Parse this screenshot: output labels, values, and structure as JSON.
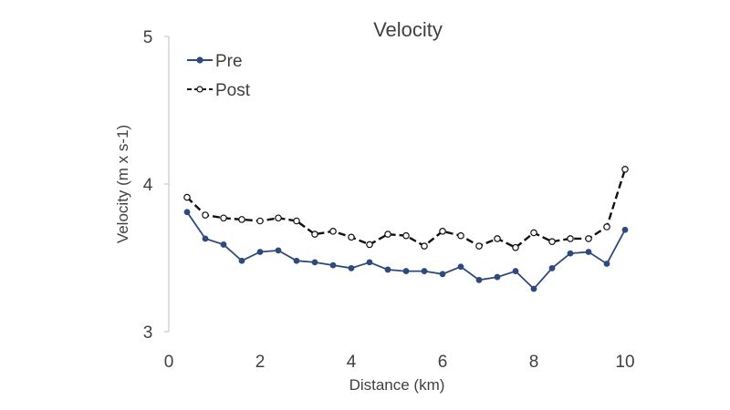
{
  "chart_data": {
    "type": "line",
    "title": "Velocity",
    "xlabel": "Distance (km)",
    "ylabel": "Velocity (m x s-1)",
    "xlim": [
      0,
      10
    ],
    "ylim": [
      3,
      5
    ],
    "x_ticks": [
      "0",
      "2",
      "4",
      "6",
      "8",
      "10"
    ],
    "y_ticks": [
      "3",
      "4",
      "5"
    ],
    "grid": false,
    "legend_position": "top-left",
    "series": [
      {
        "name": "Pre",
        "style": "solid",
        "marker": "filled-circle",
        "color": "#2e4a7d",
        "x": [
          0.4,
          0.8,
          1.2,
          1.6,
          2.0,
          2.4,
          2.8,
          3.2,
          3.6,
          4.0,
          4.4,
          4.8,
          5.2,
          5.6,
          6.0,
          6.4,
          6.8,
          7.2,
          7.6,
          8.0,
          8.4,
          8.8,
          9.2,
          9.6,
          10.0
        ],
        "values": [
          3.81,
          3.63,
          3.59,
          3.48,
          3.54,
          3.55,
          3.48,
          3.47,
          3.45,
          3.43,
          3.47,
          3.42,
          3.41,
          3.41,
          3.39,
          3.44,
          3.35,
          3.37,
          3.41,
          3.29,
          3.43,
          3.53,
          3.54,
          3.46,
          3.69
        ]
      },
      {
        "name": "Post",
        "style": "dashed",
        "marker": "open-circle",
        "color": "#111111",
        "x": [
          0.4,
          0.8,
          1.2,
          1.6,
          2.0,
          2.4,
          2.8,
          3.2,
          3.6,
          4.0,
          4.4,
          4.8,
          5.2,
          5.6,
          6.0,
          6.4,
          6.8,
          7.2,
          7.6,
          8.0,
          8.4,
          8.8,
          9.2,
          9.6,
          10.0
        ],
        "values": [
          3.91,
          3.79,
          3.77,
          3.76,
          3.75,
          3.77,
          3.75,
          3.66,
          3.68,
          3.64,
          3.59,
          3.66,
          3.65,
          3.58,
          3.68,
          3.65,
          3.58,
          3.63,
          3.57,
          3.67,
          3.61,
          3.63,
          3.63,
          3.71,
          4.1
        ]
      }
    ]
  }
}
